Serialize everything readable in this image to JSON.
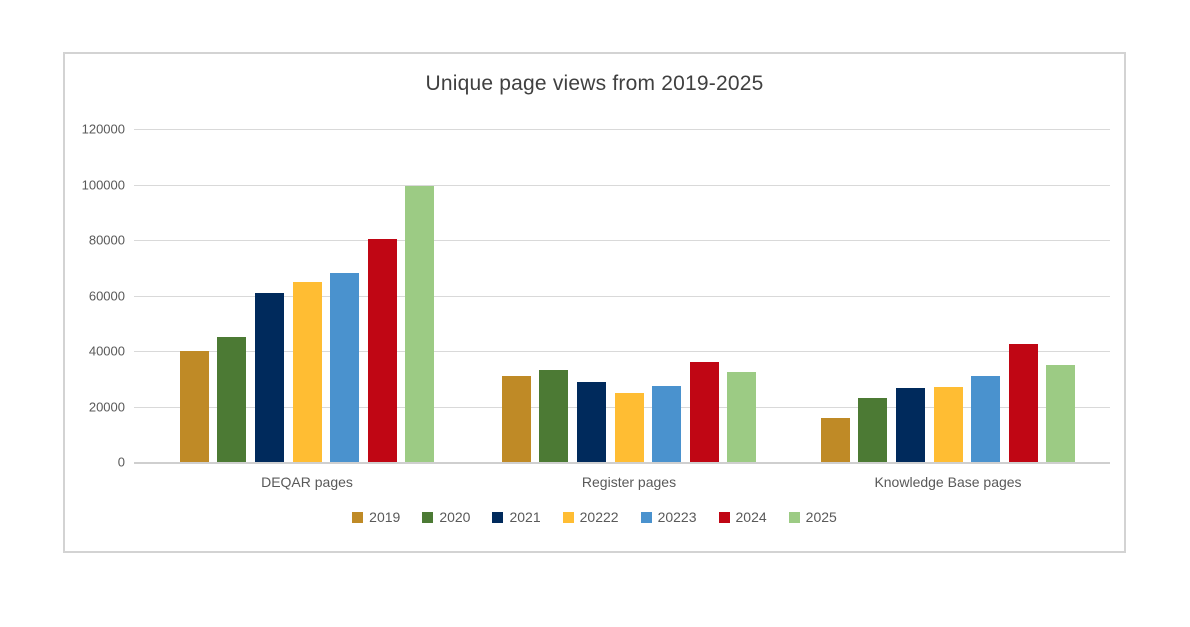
{
  "chart_data": {
    "type": "bar",
    "title": "Unique page views from 2019-2025",
    "categories": [
      "DEQAR pages",
      "Register pages",
      "Knowledge Base pages"
    ],
    "series": [
      {
        "name": "2019",
        "color": "#BF8A26",
        "values": [
          40000,
          31000,
          16000
        ]
      },
      {
        "name": "2020",
        "color": "#4C7A34",
        "values": [
          45000,
          33000,
          23000
        ]
      },
      {
        "name": "2021",
        "color": "#002A5C",
        "values": [
          61000,
          29000,
          26500
        ]
      },
      {
        "name": "20222",
        "color": "#FFBD33",
        "values": [
          65000,
          25000,
          27000
        ]
      },
      {
        "name": "20223",
        "color": "#4A92CE",
        "values": [
          68000,
          27500,
          31000
        ]
      },
      {
        "name": "2024",
        "color": "#C00614",
        "values": [
          80500,
          36000,
          42500
        ]
      },
      {
        "name": "2025",
        "color": "#9CCB84",
        "values": [
          99500,
          32500,
          35000
        ]
      }
    ],
    "y_axis": {
      "min": 0,
      "max": 120000,
      "step": 20000,
      "tick_labels": [
        "0",
        "20000",
        "40000",
        "60000",
        "80000",
        "100000",
        "120000"
      ]
    },
    "xlabel": "",
    "ylabel": "",
    "grid": true,
    "legend_position": "bottom"
  },
  "colors": {
    "grid": "#D9D9D9",
    "axis_text": "#595959",
    "title_text": "#404040",
    "frame_border": "#D3D3D3",
    "background": "#FFFFFF"
  }
}
